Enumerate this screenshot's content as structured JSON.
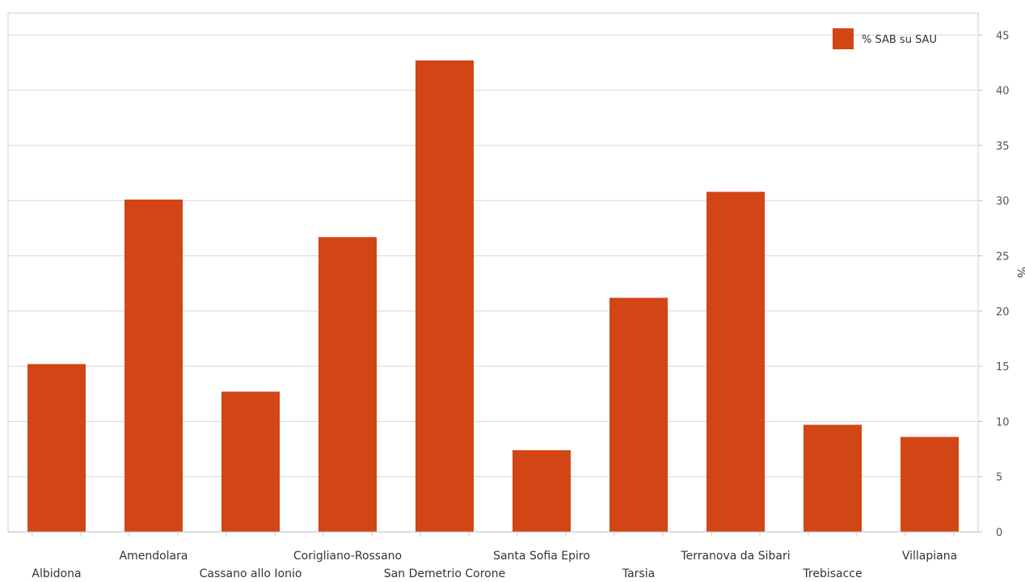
{
  "chart_data": {
    "type": "bar",
    "categories": [
      "Albidona",
      "Amendolara",
      "Cassano allo Ionio",
      "Corigliano-Rossano",
      "San Demetrio Corone",
      "Santa Sofia Epiro",
      "Tarsia",
      "Terranova da Sibari",
      "Trebisacce",
      "Villapiana"
    ],
    "series": [
      {
        "name": "% SAB su SAU",
        "values": [
          15.2,
          30.1,
          12.7,
          26.7,
          42.7,
          7.4,
          21.2,
          30.8,
          9.7,
          8.6
        ]
      }
    ],
    "ylabel": "%",
    "xlabel": "",
    "ylim": [
      0,
      47
    ],
    "yticks": [
      0,
      5,
      10,
      15,
      20,
      25,
      30,
      35,
      40,
      45
    ],
    "y_axis_side": "right",
    "grid": true,
    "legend_position": "top-right",
    "bar_color": "#d24615"
  }
}
